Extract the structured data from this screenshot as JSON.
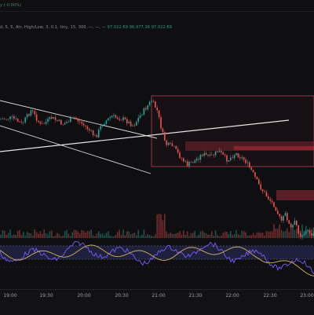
{
  "legend": {
    "symbol_change": "y (-0.00%)",
    "indicator_params": "d, 5, 5, Atr, High/Low, 3, 0.1, tiny, 15, 300, —, —, —",
    "indicator_values": "97,022.69  96,977.26  97,022.69"
  },
  "time_axis": {
    "labels": [
      "19:00",
      "19:30",
      "20:00",
      "20:30",
      "21:00",
      "21:30",
      "22:00",
      "22:30",
      "23:00"
    ]
  },
  "colors": {
    "bull": "#26a69a",
    "bear": "#ef5350",
    "zone": "#7a2630",
    "trendline": "#d9d9d9",
    "oscillator_band": "#2b2f5e"
  }
}
